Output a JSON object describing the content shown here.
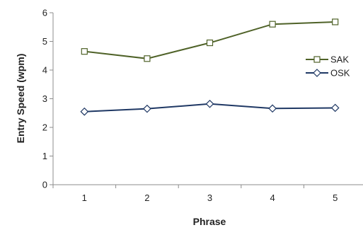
{
  "chart_data": {
    "type": "line",
    "xlabel": "Phrase",
    "ylabel": "Entry Speed (wpm)",
    "x": [
      1,
      2,
      3,
      4,
      5
    ],
    "ylim": [
      0,
      6
    ],
    "yticks": [
      0,
      1,
      2,
      3,
      4,
      5,
      6
    ],
    "grid": false,
    "legend_position": "right",
    "series": [
      {
        "name": "SAK",
        "values": [
          4.65,
          4.4,
          4.95,
          5.6,
          5.68
        ],
        "color": "#4f6228",
        "marker": "square"
      },
      {
        "name": "OSK",
        "values": [
          2.55,
          2.65,
          2.82,
          2.66,
          2.68
        ],
        "color": "#1f3864",
        "marker": "diamond"
      }
    ]
  }
}
